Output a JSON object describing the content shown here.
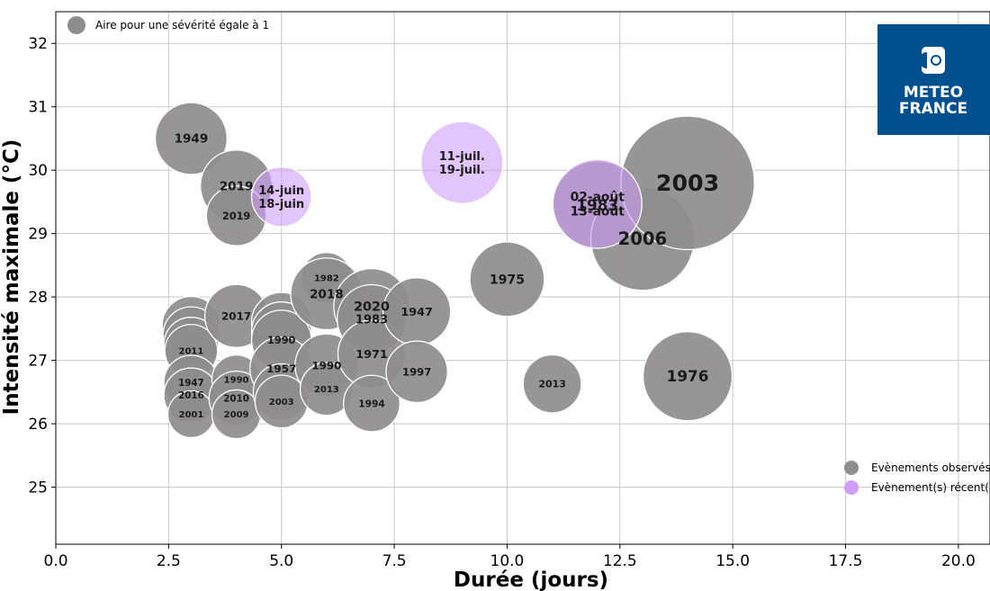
{
  "chart_data": {
    "type": "scatter",
    "xlabel": "Durée (jours)",
    "ylabel": "Intensité maximale (°C)",
    "xlim": [
      0,
      20.7
    ],
    "ylim": [
      24.1,
      32.5
    ],
    "xticks": [
      0.0,
      2.5,
      5.0,
      7.5,
      10.0,
      12.5,
      15.0,
      17.5,
      20.0
    ],
    "xtick_labels": [
      "0.0",
      "2.5",
      "5.0",
      "7.5",
      "10.0",
      "12.5",
      "15.0",
      "17.5",
      "20.0"
    ],
    "yticks": [
      25,
      26,
      27,
      28,
      29,
      30,
      31,
      32
    ],
    "ytick_labels": [
      "25",
      "26",
      "27",
      "28",
      "29",
      "30",
      "31",
      "32"
    ],
    "grid": true,
    "size_legend": "Aire pour une sévérité égale à 1",
    "legend_position": "bottom-right",
    "colors": {
      "observed": "#8f8c8d",
      "recent": "#cf9ef7"
    },
    "series": [
      {
        "name": "Evènements observés",
        "color": "#8f8c8d",
        "points": [
          {
            "label": "1949",
            "x": 3,
            "y": 30.5,
            "size": 1.3
          },
          {
            "label": "2019",
            "x": 4,
            "y": 29.75,
            "size": 1.3
          },
          {
            "label": "2019",
            "x": 4,
            "y": 29.28,
            "size": 0.9
          },
          {
            "label": "",
            "x": 3,
            "y": 27.55,
            "size": 0.85
          },
          {
            "label": "",
            "x": 3,
            "y": 27.4,
            "size": 0.8
          },
          {
            "label": "",
            "x": 3,
            "y": 27.25,
            "size": 0.75
          },
          {
            "label": "2011",
            "x": 3,
            "y": 27.15,
            "size": 0.7
          },
          {
            "label": "1947",
            "x": 3,
            "y": 26.65,
            "size": 0.75
          },
          {
            "label": "2016",
            "x": 3,
            "y": 26.45,
            "size": 0.75
          },
          {
            "label": "2001",
            "x": 3,
            "y": 26.15,
            "size": 0.55
          },
          {
            "label": "2017",
            "x": 4,
            "y": 27.7,
            "size": 1.0
          },
          {
            "label": "1990",
            "x": 4,
            "y": 26.7,
            "size": 0.6
          },
          {
            "label": "2010",
            "x": 4,
            "y": 26.4,
            "size": 0.75
          },
          {
            "label": "2009",
            "x": 4,
            "y": 26.15,
            "size": 0.6
          },
          {
            "label": "",
            "x": 5,
            "y": 27.6,
            "size": 0.9
          },
          {
            "label": "",
            "x": 5,
            "y": 27.45,
            "size": 0.9
          },
          {
            "label": "1990",
            "x": 5,
            "y": 27.32,
            "size": 0.9
          },
          {
            "label": "1957",
            "x": 5,
            "y": 26.87,
            "size": 1.0
          },
          {
            "label": "",
            "x": 5,
            "y": 26.5,
            "size": 0.8
          },
          {
            "label": "2003",
            "x": 5,
            "y": 26.35,
            "size": 0.7
          },
          {
            "label": "1982",
            "x": 6,
            "y": 28.3,
            "size": 0.65
          },
          {
            "label": "2018",
            "x": 6,
            "y": 28.05,
            "size": 1.3
          },
          {
            "label": "1990",
            "x": 6,
            "y": 26.92,
            "size": 1.0
          },
          {
            "label": "2013",
            "x": 6,
            "y": 26.55,
            "size": 0.7
          },
          {
            "label": "2020",
            "x": 7,
            "y": 27.85,
            "size": 1.45
          },
          {
            "label": "1983",
            "x": 7,
            "y": 27.65,
            "size": 1.2
          },
          {
            "label": "1971",
            "x": 7,
            "y": 27.1,
            "size": 1.15
          },
          {
            "label": "1994",
            "x": 7,
            "y": 26.32,
            "size": 0.8
          },
          {
            "label": "1947",
            "x": 8,
            "y": 27.77,
            "size": 1.15
          },
          {
            "label": "1997",
            "x": 8,
            "y": 26.82,
            "size": 0.95
          },
          {
            "label": "1975",
            "x": 10,
            "y": 28.28,
            "size": 1.4
          },
          {
            "label": "2013",
            "x": 11,
            "y": 26.63,
            "size": 0.85
          },
          {
            "label": "1983",
            "x": 12,
            "y": 29.45,
            "size": 2.0
          },
          {
            "label": "2006",
            "x": 13,
            "y": 28.92,
            "size": 2.7
          },
          {
            "label": "2003",
            "x": 14,
            "y": 29.8,
            "size": 4.5
          },
          {
            "label": "1976",
            "x": 14,
            "y": 26.75,
            "size": 2.0
          }
        ]
      },
      {
        "name": "Evènement(s) récent(s)",
        "color": "#cf9ef7",
        "points": [
          {
            "label": "14-juin\n18-juin",
            "x": 5,
            "y": 29.58,
            "size": 0.9
          },
          {
            "label": "11-juil.\n19-juil.",
            "x": 9,
            "y": 30.12,
            "size": 1.7
          },
          {
            "label": "02-août\n13-août",
            "x": 12,
            "y": 29.47,
            "size": 2.0
          }
        ]
      }
    ]
  },
  "logo": {
    "line1": "METEO",
    "line2": "FRANCE",
    "color": "#00508e"
  }
}
